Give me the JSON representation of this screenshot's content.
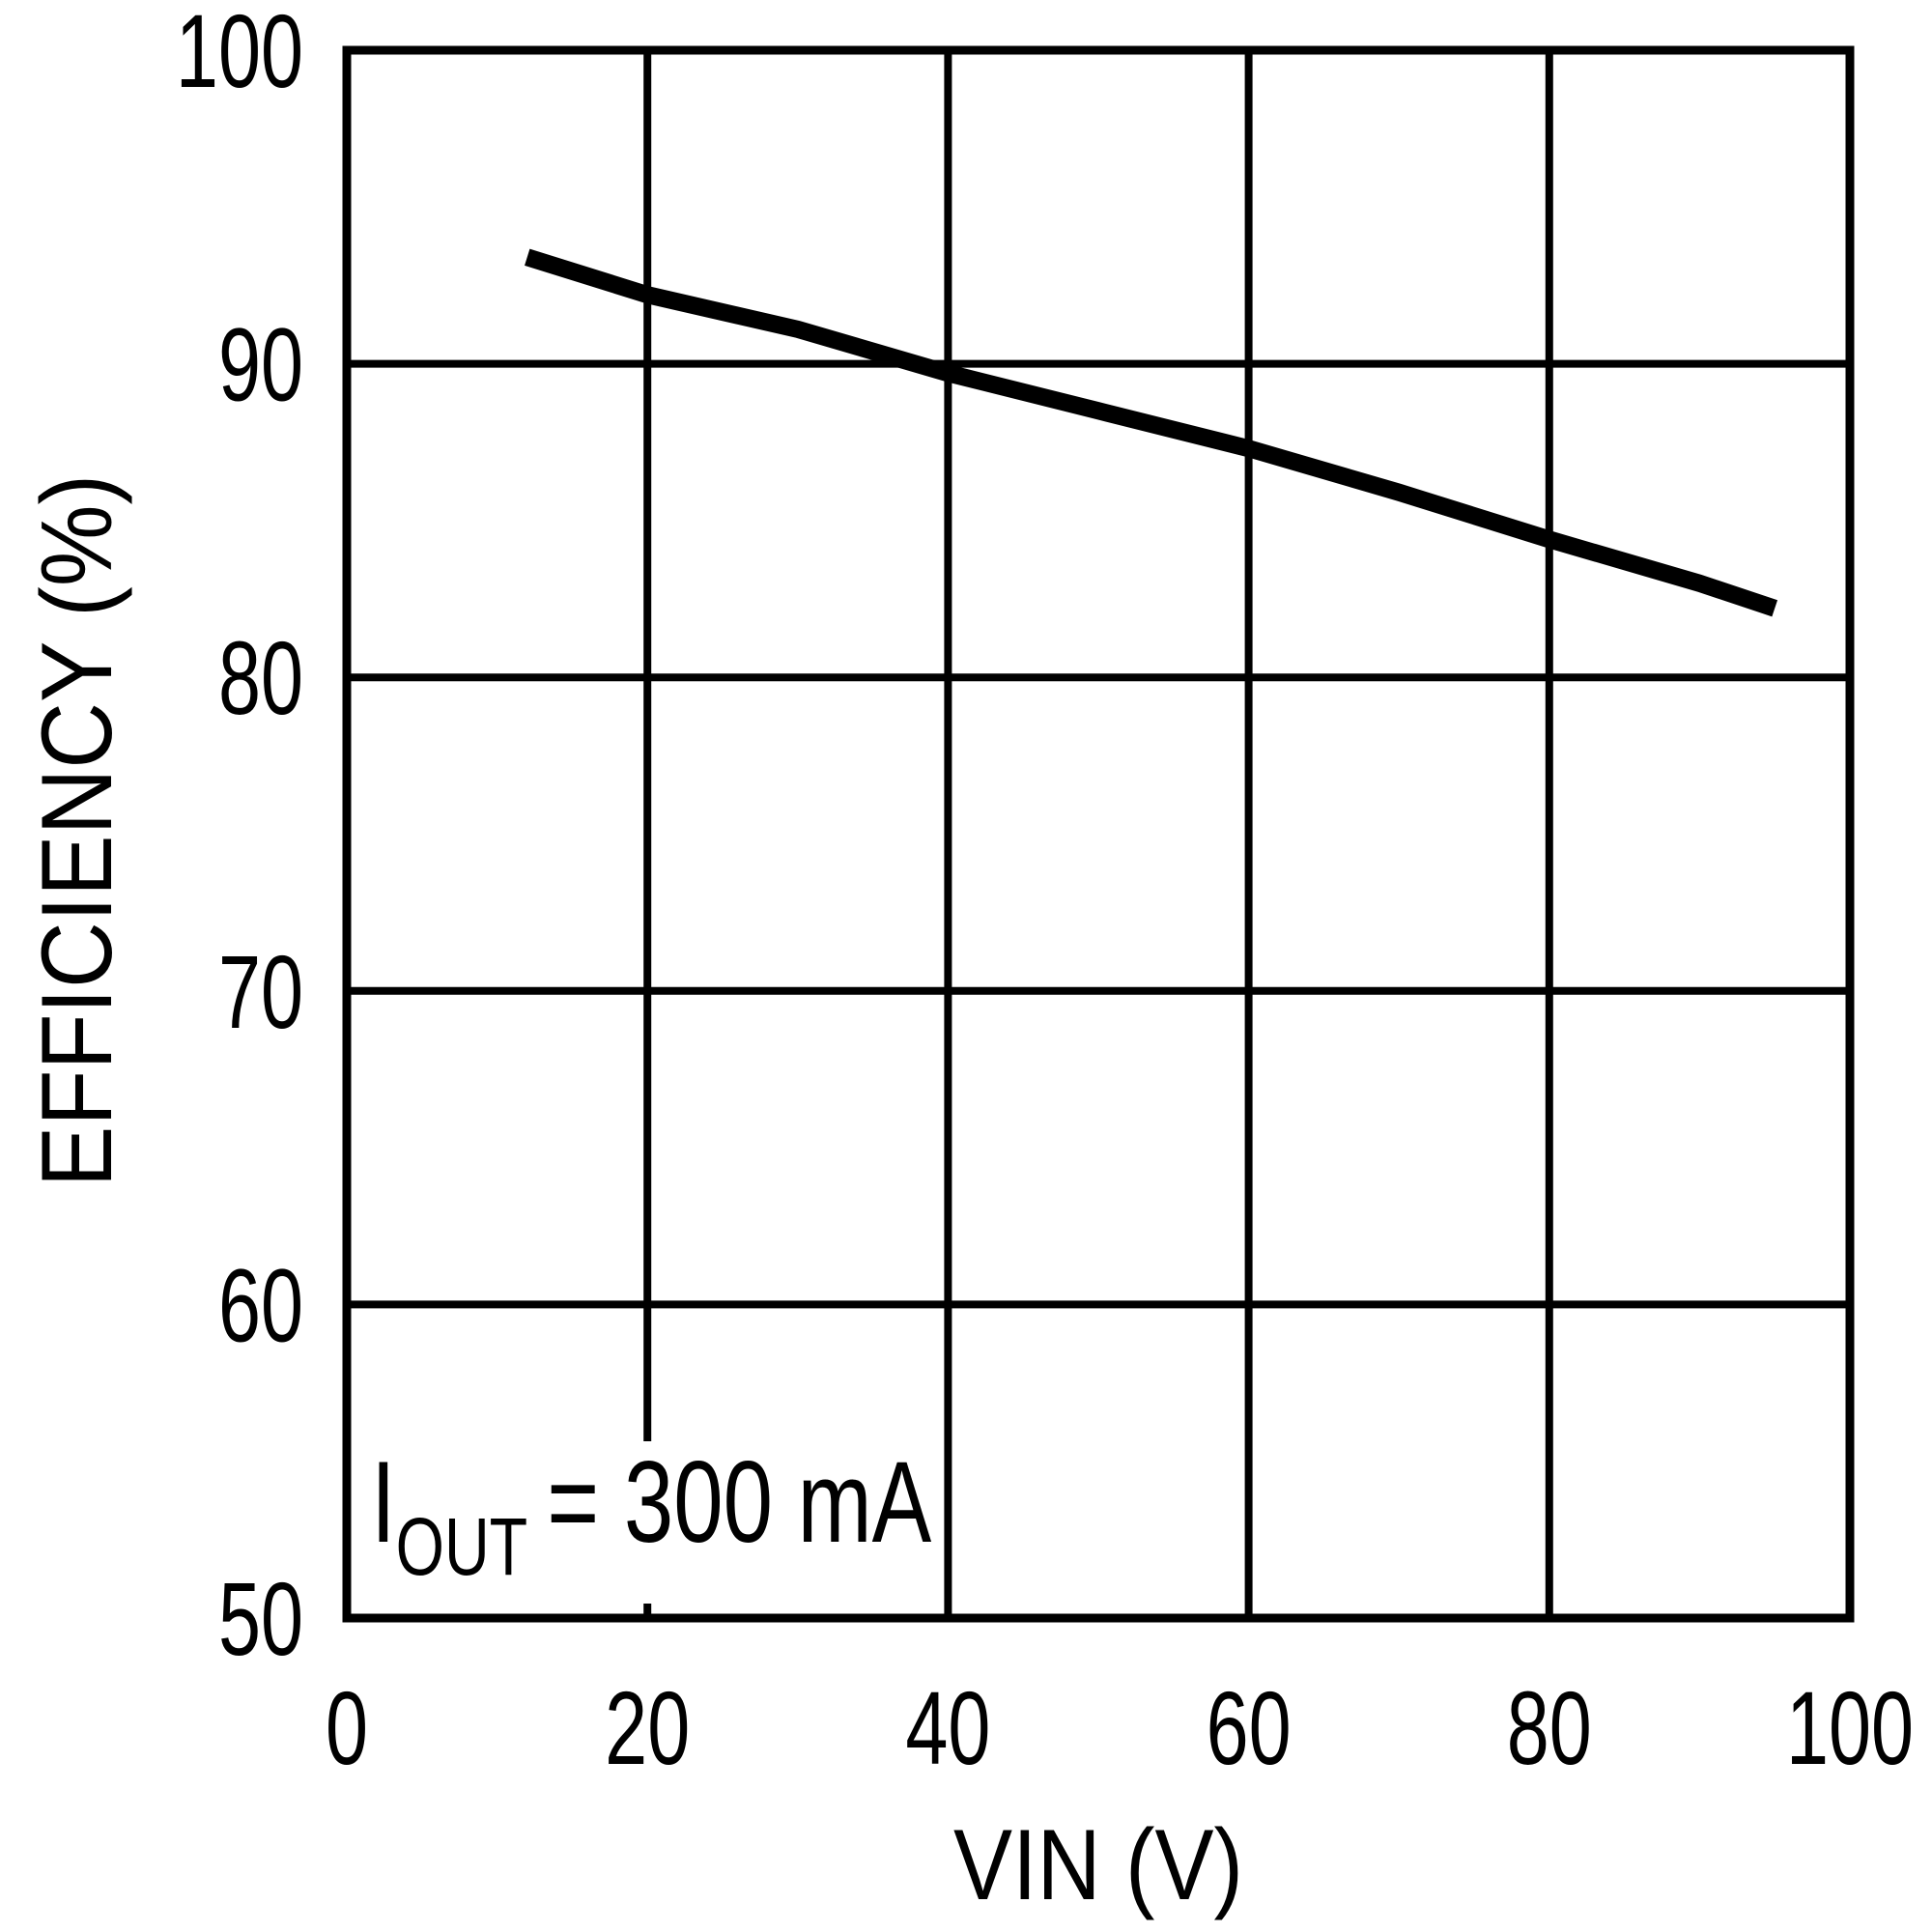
{
  "colors": {
    "ink": "#000000",
    "background": "#ffffff"
  },
  "chart_data": {
    "type": "line",
    "title": "",
    "xlabel": "VIN (V)",
    "ylabel": "EFFICIENCY (%)",
    "xlim": [
      0,
      100
    ],
    "ylim": [
      50,
      100
    ],
    "grid": "on",
    "legend": "none",
    "x_ticks": [
      0,
      20,
      40,
      60,
      80,
      100
    ],
    "x_tick_labels": [
      "0",
      "20",
      "40",
      "60",
      "80",
      "100"
    ],
    "y_ticks": [
      100,
      90,
      80,
      70,
      60,
      50
    ],
    "y_tick_labels": [
      "100",
      "90",
      "80",
      "70",
      "60",
      "50"
    ],
    "series": [
      {
        "points": [
          [
            12,
            93.4
          ],
          [
            20,
            92.2
          ],
          [
            30,
            91.1
          ],
          [
            40,
            89.7
          ],
          [
            50,
            88.5
          ],
          [
            60,
            87.3
          ],
          [
            70,
            85.9
          ],
          [
            80,
            84.4
          ],
          [
            90,
            83.0
          ],
          [
            95,
            82.2
          ]
        ]
      }
    ],
    "annotation": {
      "main": "I",
      "sub": "OUT",
      "rest": "= 300 mA"
    }
  }
}
